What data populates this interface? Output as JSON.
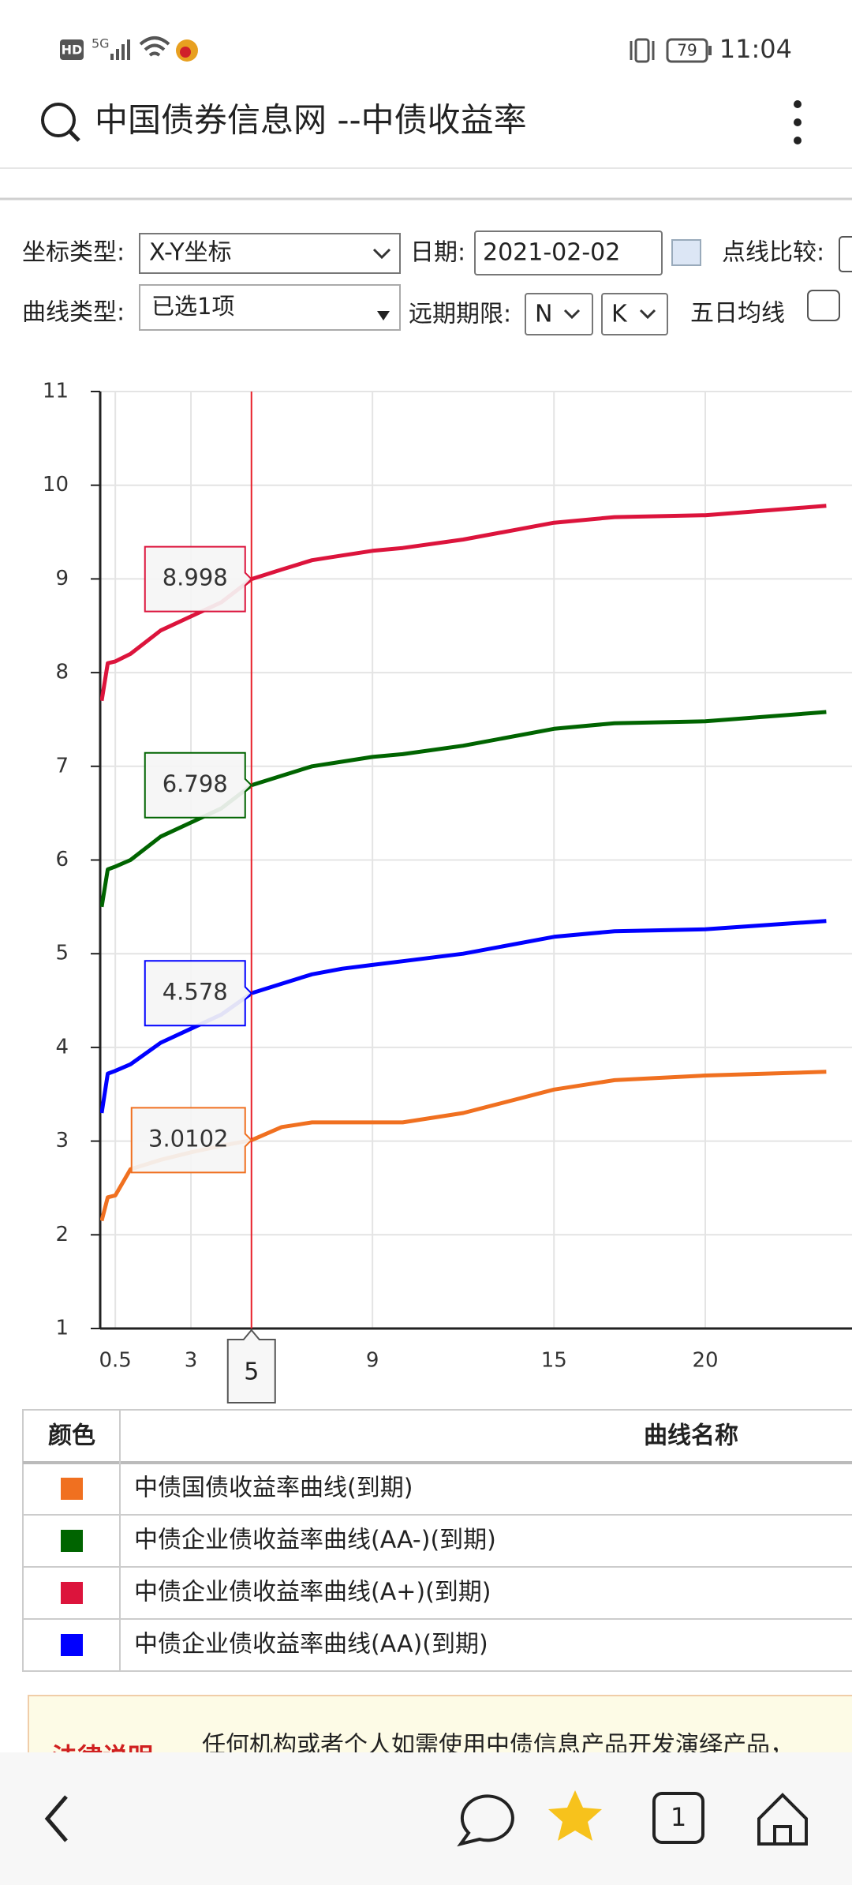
{
  "status_bar": {
    "hd": "HD",
    "network": "5G",
    "battery": "79",
    "time": "11:04"
  },
  "header": {
    "title": "中国债券信息网 --中债收益率"
  },
  "controls": {
    "coord_label": "坐标类型:",
    "coord_value": "X-Y坐标",
    "date_label": "日期:",
    "date_value": "2021-02-02",
    "compare_label": "点线比较:",
    "curve_label": "曲线类型:",
    "curve_value": "已选1项",
    "forward_label": "远期期限:",
    "forward_n": "N",
    "forward_k": "K",
    "ma_label": "五日均线"
  },
  "chart_data": {
    "type": "line",
    "x": [
      0.05,
      0.25,
      0.5,
      1,
      2,
      3,
      4,
      5,
      6,
      7,
      8,
      9,
      10,
      12,
      15,
      17,
      20,
      24
    ],
    "xlim": [
      0,
      24.85
    ],
    "xticks": [
      0.5,
      3,
      9,
      15,
      20
    ],
    "ylim": [
      1,
      11
    ],
    "yticks": [
      1,
      2,
      3,
      4,
      5,
      6,
      7,
      8,
      9,
      10,
      11
    ],
    "grid": true,
    "crosshair_x": 5,
    "series": [
      {
        "name": "中债国债收益率曲线(到期)",
        "color": "#f07020",
        "values": [
          2.15,
          2.4,
          2.42,
          2.7,
          2.8,
          2.88,
          2.95,
          3.0102,
          3.15,
          3.2,
          3.2,
          3.2,
          3.2,
          3.3,
          3.55,
          3.65,
          3.7,
          3.74
        ]
      },
      {
        "name": "中债企业债收益率曲线(AA-)(到期)",
        "color": "#006400",
        "values": [
          5.5,
          5.9,
          5.93,
          6.0,
          6.25,
          6.4,
          6.55,
          6.798,
          6.9,
          7.0,
          7.05,
          7.1,
          7.13,
          7.22,
          7.4,
          7.46,
          7.48,
          7.58
        ]
      },
      {
        "name": "中债企业债收益率曲线(A+)(到期)",
        "color": "#dc143c",
        "values": [
          7.7,
          8.1,
          8.12,
          8.2,
          8.45,
          8.6,
          8.75,
          8.998,
          9.1,
          9.2,
          9.25,
          9.3,
          9.33,
          9.42,
          9.6,
          9.66,
          9.68,
          9.78
        ]
      },
      {
        "name": "中债企业债收益率曲线(AA)(到期)",
        "color": "#0000ff",
        "values": [
          3.3,
          3.72,
          3.75,
          3.82,
          4.05,
          4.2,
          4.35,
          4.578,
          4.68,
          4.78,
          4.84,
          4.88,
          4.92,
          5.0,
          5.18,
          5.24,
          5.26,
          5.35
        ]
      }
    ]
  },
  "table": {
    "headers": [
      "颜色",
      "曲线名称"
    ]
  },
  "legal": {
    "title": "法律说明",
    "text": "任何机构或者个人如需使用中债信息产品开发演绎产品，"
  },
  "nav": {
    "tabs": "1"
  }
}
